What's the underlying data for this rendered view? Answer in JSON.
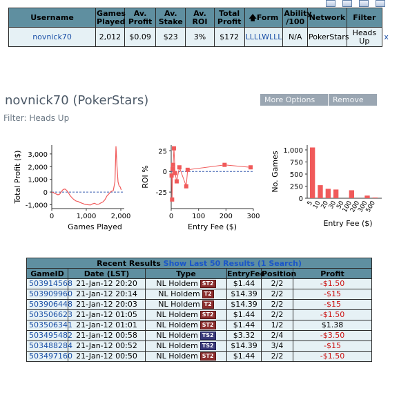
{
  "summary": {
    "headers": [
      "Username",
      "Games Played",
      "Av. Profit",
      "Av. Stake",
      "Av. ROI",
      "Total Profit",
      "Form",
      "Ability /100",
      "Network",
      "Filter"
    ],
    "row": {
      "username": "novnick70",
      "games_played": "2,012",
      "av_profit": "$0.09",
      "av_stake": "$23",
      "av_roi": "3%",
      "total_profit": "$172",
      "form": "LLLLWLLL",
      "ability": "N/A",
      "network": "PokerStars",
      "filter": "Heads Up",
      "remove": "x"
    }
  },
  "title": "novnick70 (PokerStars)",
  "buttons": {
    "more_options": "More Options",
    "remove": "Remove"
  },
  "filter_line": "Filter: Heads Up",
  "colors": {
    "header_bg": "#5f8fa0",
    "row_bg": "#e6f1f5",
    "series": "#f05a5a",
    "negative": "#cc1111",
    "link": "#1a4fa6"
  },
  "chart_data": [
    {
      "type": "line",
      "ylabel": "Total Profit ($)",
      "xlabel": "Games Played",
      "xlim": [
        0,
        2100
      ],
      "ylim": [
        -1300,
        3700
      ],
      "xticks": [
        "0",
        "1,000",
        "2,000"
      ],
      "yticks": [
        "3,000",
        "2,000",
        "1,000",
        "0",
        "-1,000"
      ],
      "x": [
        0,
        60,
        120,
        180,
        230,
        280,
        330,
        380,
        430,
        480,
        530,
        580,
        640,
        700,
        760,
        820,
        880,
        940,
        1000,
        1060,
        1120,
        1180,
        1240,
        1300,
        1360,
        1420,
        1480,
        1540,
        1600,
        1660,
        1720,
        1780,
        1830,
        1860,
        1890,
        1920,
        1950,
        1980,
        2012
      ],
      "y": [
        0,
        -60,
        -140,
        -220,
        -160,
        40,
        200,
        240,
        140,
        -40,
        -280,
        -430,
        -590,
        -700,
        -740,
        -820,
        -880,
        -940,
        -980,
        -1000,
        -1020,
        -930,
        -880,
        -970,
        -950,
        -860,
        -780,
        -600,
        -300,
        -120,
        60,
        100,
        800,
        3600,
        2000,
        800,
        500,
        420,
        172
      ]
    },
    {
      "type": "scatter",
      "ylabel": "ROI %",
      "xlabel": "Entry Fee ($)",
      "xlim": [
        0,
        300
      ],
      "ylim": [
        -45,
        32
      ],
      "xticks": [
        "0",
        "100",
        "200",
        "300"
      ],
      "yticks": [
        "25",
        "0",
        "-25"
      ],
      "x": [
        1.44,
        3.32,
        5,
        7,
        10,
        14.39,
        20,
        30,
        55,
        60,
        195,
        290
      ],
      "y": [
        -5,
        -34,
        3,
        8,
        28,
        -2,
        -12,
        5,
        -18,
        2,
        8,
        5
      ]
    },
    {
      "type": "bar",
      "ylabel": "No. Games",
      "xlabel": "Entry Fee ($)",
      "ylim": [
        0,
        1100
      ],
      "yticks": [
        "1,000",
        "750",
        "500",
        "250",
        "0"
      ],
      "categories": [
        "5",
        "10",
        "20",
        "30",
        "50",
        "100",
        "200",
        "300",
        "500"
      ],
      "values": [
        1050,
        270,
        195,
        180,
        0,
        165,
        0,
        55,
        15
      ]
    }
  ],
  "recent": {
    "title": "Recent Results",
    "link": "Show Last 50 Results (1 Search)",
    "headers": [
      "GameID",
      "Date (LST)",
      "Type",
      "EntryFee",
      "Position",
      "Profit"
    ],
    "rows": [
      {
        "id": "503914568",
        "date": "21-Jan-12  20:20",
        "type": "NL Holdem",
        "badge": "ST2",
        "fee": "$1.44",
        "pos": "2/2",
        "profit": "-$1.50"
      },
      {
        "id": "503909960",
        "date": "21-Jan-12  20:14",
        "type": "NL Holdem",
        "badge": "T2",
        "fee": "$14.39",
        "pos": "2/2",
        "profit": "-$15"
      },
      {
        "id": "503906448",
        "date": "21-Jan-12  20:03",
        "type": "NL Holdem",
        "badge": "T2",
        "fee": "$14.39",
        "pos": "2/2",
        "profit": "-$15"
      },
      {
        "id": "503506623",
        "date": "21-Jan-12  01:05",
        "type": "NL Holdem",
        "badge": "ST2",
        "fee": "$1.44",
        "pos": "2/2",
        "profit": "-$1.50"
      },
      {
        "id": "503506341",
        "date": "21-Jan-12  01:01",
        "type": "NL Holdem",
        "badge": "ST2",
        "fee": "$1.44",
        "pos": "1/2",
        "profit": "$1.38"
      },
      {
        "id": "503495482",
        "date": "21-Jan-12  00:58",
        "type": "NL Holdem",
        "badge": "TS2",
        "fee": "$3.32",
        "pos": "2/4",
        "profit": "-$3.50"
      },
      {
        "id": "503488284",
        "date": "21-Jan-12  00:52",
        "type": "NL Holdem",
        "badge": "TS2",
        "fee": "$14.39",
        "pos": "3/4",
        "profit": "-$15"
      },
      {
        "id": "503497160",
        "date": "21-Jan-12  00:50",
        "type": "NL Holdem",
        "badge": "ST2",
        "fee": "$1.44",
        "pos": "2/2",
        "profit": "-$1.50"
      }
    ]
  }
}
